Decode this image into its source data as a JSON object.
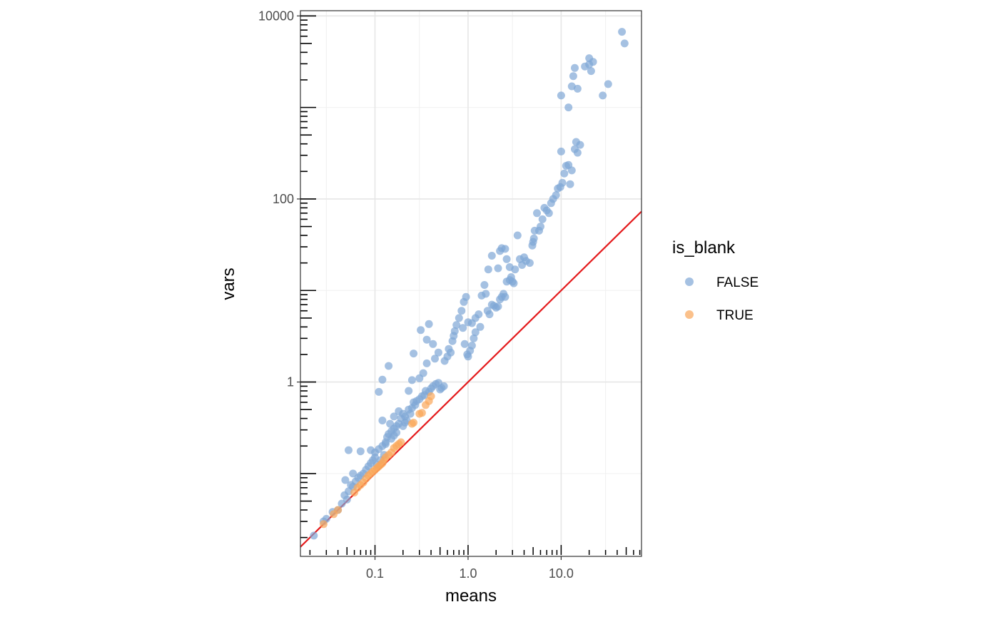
{
  "chart_data": {
    "type": "scatter",
    "title": "",
    "xlabel": "means",
    "ylabel": "vars",
    "x_scale": "log10",
    "y_scale": "log10",
    "xlim": [
      0.0158,
      73
    ],
    "ylim": [
      0.01245,
      11400
    ],
    "x_ticks": [
      0.1,
      1.0,
      10.0
    ],
    "x_tick_labels": [
      "0.1",
      "1.0",
      "10.0"
    ],
    "y_ticks": [
      1,
      100,
      10000
    ],
    "y_tick_labels": [
      "1",
      "100",
      "10000"
    ],
    "grid": true,
    "legend": {
      "title": "is_blank",
      "placement": "right",
      "entries": [
        {
          "label": "FALSE",
          "color": "#7fa6d6"
        },
        {
          "label": "TRUE",
          "color": "#f9a65a"
        }
      ]
    },
    "reference_line": {
      "slope": 1,
      "intercept": 0,
      "color": "#e41a1c"
    },
    "series": [
      {
        "name": "FALSE",
        "color": "#7fa6d6",
        "points": [
          [
            0.022,
            0.021
          ],
          [
            0.028,
            0.03
          ],
          [
            0.03,
            0.032
          ],
          [
            0.035,
            0.038
          ],
          [
            0.04,
            0.04
          ],
          [
            0.044,
            0.047
          ],
          [
            0.047,
            0.058
          ],
          [
            0.05,
            0.052
          ],
          [
            0.052,
            0.064
          ],
          [
            0.055,
            0.075
          ],
          [
            0.048,
            0.085
          ],
          [
            0.058,
            0.072
          ],
          [
            0.062,
            0.082
          ],
          [
            0.066,
            0.09
          ],
          [
            0.07,
            0.095
          ],
          [
            0.075,
            0.1
          ],
          [
            0.052,
            0.18
          ],
          [
            0.07,
            0.175
          ],
          [
            0.058,
            0.1
          ],
          [
            0.08,
            0.11
          ],
          [
            0.085,
            0.12
          ],
          [
            0.09,
            0.13
          ],
          [
            0.095,
            0.14
          ],
          [
            0.1,
            0.15
          ],
          [
            0.09,
            0.18
          ],
          [
            0.11,
            0.185
          ],
          [
            0.1,
            0.17
          ],
          [
            0.12,
            0.2
          ],
          [
            0.13,
            0.22
          ],
          [
            0.135,
            0.25
          ],
          [
            0.14,
            0.27
          ],
          [
            0.15,
            0.29
          ],
          [
            0.16,
            0.31
          ],
          [
            0.17,
            0.33
          ],
          [
            0.18,
            0.35
          ],
          [
            0.12,
            0.38
          ],
          [
            0.145,
            0.35
          ],
          [
            0.16,
            0.42
          ],
          [
            0.18,
            0.48
          ],
          [
            0.19,
            0.4
          ],
          [
            0.2,
            0.45
          ],
          [
            0.21,
            0.42
          ],
          [
            0.23,
            0.5
          ],
          [
            0.24,
            0.45
          ],
          [
            0.25,
            0.52
          ],
          [
            0.26,
            0.6
          ],
          [
            0.27,
            0.56
          ],
          [
            0.28,
            0.62
          ],
          [
            0.3,
            0.65
          ],
          [
            0.32,
            0.7
          ],
          [
            0.34,
            0.72
          ],
          [
            0.35,
            0.8
          ],
          [
            0.38,
            0.78
          ],
          [
            0.4,
            0.85
          ],
          [
            0.42,
            0.9
          ],
          [
            0.45,
            0.95
          ],
          [
            0.48,
            0.98
          ],
          [
            0.5,
            0.83
          ],
          [
            0.52,
            0.86
          ],
          [
            0.55,
            0.9
          ],
          [
            0.11,
            0.78
          ],
          [
            0.12,
            1.06
          ],
          [
            0.14,
            1.5
          ],
          [
            0.23,
            0.8
          ],
          [
            0.25,
            1.05
          ],
          [
            0.26,
            2.05
          ],
          [
            0.31,
            3.7
          ],
          [
            0.38,
            4.3
          ],
          [
            0.36,
            2.9
          ],
          [
            0.42,
            2.6
          ],
          [
            0.48,
            2.1
          ],
          [
            0.44,
            1.8
          ],
          [
            0.36,
            1.6
          ],
          [
            0.3,
            1.1
          ],
          [
            0.33,
            1.25
          ],
          [
            0.56,
            1.7
          ],
          [
            0.6,
            1.9
          ],
          [
            0.62,
            2.3
          ],
          [
            0.65,
            2.1
          ],
          [
            0.68,
            2.8
          ],
          [
            0.7,
            3.2
          ],
          [
            0.72,
            3.6
          ],
          [
            0.75,
            4.2
          ],
          [
            0.8,
            5.0
          ],
          [
            0.85,
            6.0
          ],
          [
            0.9,
            7.5
          ],
          [
            0.95,
            8.5
          ],
          [
            0.88,
            3.9
          ],
          [
            0.92,
            2.6
          ],
          [
            0.98,
            2.0
          ],
          [
            1.0,
            1.9
          ],
          [
            1.05,
            2.2
          ],
          [
            1.1,
            2.5
          ],
          [
            1.15,
            3.0
          ],
          [
            1.2,
            3.5
          ],
          [
            1.0,
            4.5
          ],
          [
            1.1,
            4.4
          ],
          [
            1.2,
            5.0
          ],
          [
            1.3,
            5.5
          ],
          [
            1.35,
            4.0
          ],
          [
            1.4,
            8.8
          ],
          [
            1.5,
            11.5
          ],
          [
            1.55,
            9.2
          ],
          [
            1.62,
            6.0
          ],
          [
            1.7,
            5.5
          ],
          [
            1.8,
            7.0
          ],
          [
            1.9,
            6.8
          ],
          [
            2.0,
            6.5
          ],
          [
            2.1,
            6.7
          ],
          [
            2.2,
            8.0
          ],
          [
            2.3,
            8.5
          ],
          [
            2.4,
            9.2
          ],
          [
            2.5,
            8.5
          ],
          [
            2.6,
            12.5
          ],
          [
            2.8,
            13.0
          ],
          [
            1.65,
            17.0
          ],
          [
            1.8,
            24.0
          ],
          [
            2.1,
            17.5
          ],
          [
            2.2,
            27.0
          ],
          [
            2.3,
            29.0
          ],
          [
            2.5,
            28.5
          ],
          [
            2.6,
            22.0
          ],
          [
            2.8,
            18.0
          ],
          [
            2.9,
            14.0
          ],
          [
            3.0,
            12.5
          ],
          [
            3.1,
            12.0
          ],
          [
            3.2,
            17.0
          ],
          [
            3.4,
            40.0
          ],
          [
            3.6,
            22.0
          ],
          [
            3.8,
            19.0
          ],
          [
            4.0,
            23.0
          ],
          [
            4.2,
            21.0
          ],
          [
            4.6,
            20.0
          ],
          [
            4.9,
            31.0
          ],
          [
            5.0,
            34.0
          ],
          [
            5.1,
            37.0
          ],
          [
            5.2,
            45.0
          ],
          [
            5.5,
            70.0
          ],
          [
            5.8,
            45.0
          ],
          [
            6.0,
            50.0
          ],
          [
            6.3,
            60.0
          ],
          [
            6.6,
            80.0
          ],
          [
            7.0,
            75.0
          ],
          [
            7.4,
            70.0
          ],
          [
            7.8,
            90.0
          ],
          [
            8.2,
            100.0
          ],
          [
            8.8,
            110.0
          ],
          [
            9.2,
            130.0
          ],
          [
            9.8,
            135.0
          ],
          [
            10.3,
            150.0
          ],
          [
            10.8,
            190.0
          ],
          [
            11.3,
            230.0
          ],
          [
            12.0,
            235.0
          ],
          [
            12.5,
            145.0
          ],
          [
            13.0,
            205.0
          ],
          [
            14.0,
            350.0
          ],
          [
            14.5,
            420.0
          ],
          [
            15.0,
            320.0
          ],
          [
            16.0,
            390.0
          ],
          [
            10.0,
            330.0
          ],
          [
            12.0,
            1000.0
          ],
          [
            10.0,
            1350.0
          ],
          [
            13.0,
            1700.0
          ],
          [
            15.0,
            1600.0
          ],
          [
            14.0,
            2700.0
          ],
          [
            13.5,
            2200.0
          ],
          [
            18.0,
            2800.0
          ],
          [
            20.0,
            3450.0
          ],
          [
            22.0,
            3150.0
          ],
          [
            21.0,
            2500.0
          ],
          [
            20.0,
            2950.0
          ],
          [
            28.0,
            1350.0
          ],
          [
            32.0,
            1800.0
          ],
          [
            45.0,
            6700.0
          ],
          [
            48.0,
            5000.0
          ],
          [
            0.2,
            0.33
          ],
          [
            0.21,
            0.36
          ],
          [
            0.22,
            0.38
          ],
          [
            0.16,
            0.26
          ],
          [
            0.17,
            0.28
          ],
          [
            0.15,
            0.24
          ],
          [
            0.13,
            0.21
          ],
          [
            0.125,
            0.16
          ],
          [
            0.115,
            0.14
          ],
          [
            0.105,
            0.125
          ]
        ]
      },
      {
        "name": "TRUE",
        "color": "#f9a65a",
        "points": [
          [
            0.028,
            0.028
          ],
          [
            0.036,
            0.036
          ],
          [
            0.04,
            0.04
          ],
          [
            0.06,
            0.062
          ],
          [
            0.065,
            0.07
          ],
          [
            0.07,
            0.075
          ],
          [
            0.075,
            0.08
          ],
          [
            0.08,
            0.088
          ],
          [
            0.085,
            0.095
          ],
          [
            0.09,
            0.1
          ],
          [
            0.095,
            0.105
          ],
          [
            0.1,
            0.11
          ],
          [
            0.105,
            0.115
          ],
          [
            0.11,
            0.12
          ],
          [
            0.115,
            0.125
          ],
          [
            0.12,
            0.13
          ],
          [
            0.125,
            0.14
          ],
          [
            0.13,
            0.15
          ],
          [
            0.14,
            0.16
          ],
          [
            0.15,
            0.17
          ],
          [
            0.16,
            0.19
          ],
          [
            0.17,
            0.2
          ],
          [
            0.18,
            0.21
          ],
          [
            0.19,
            0.22
          ],
          [
            0.25,
            0.35
          ],
          [
            0.26,
            0.36
          ],
          [
            0.3,
            0.45
          ],
          [
            0.32,
            0.46
          ],
          [
            0.35,
            0.56
          ],
          [
            0.38,
            0.62
          ],
          [
            0.4,
            0.7
          ]
        ]
      }
    ]
  }
}
